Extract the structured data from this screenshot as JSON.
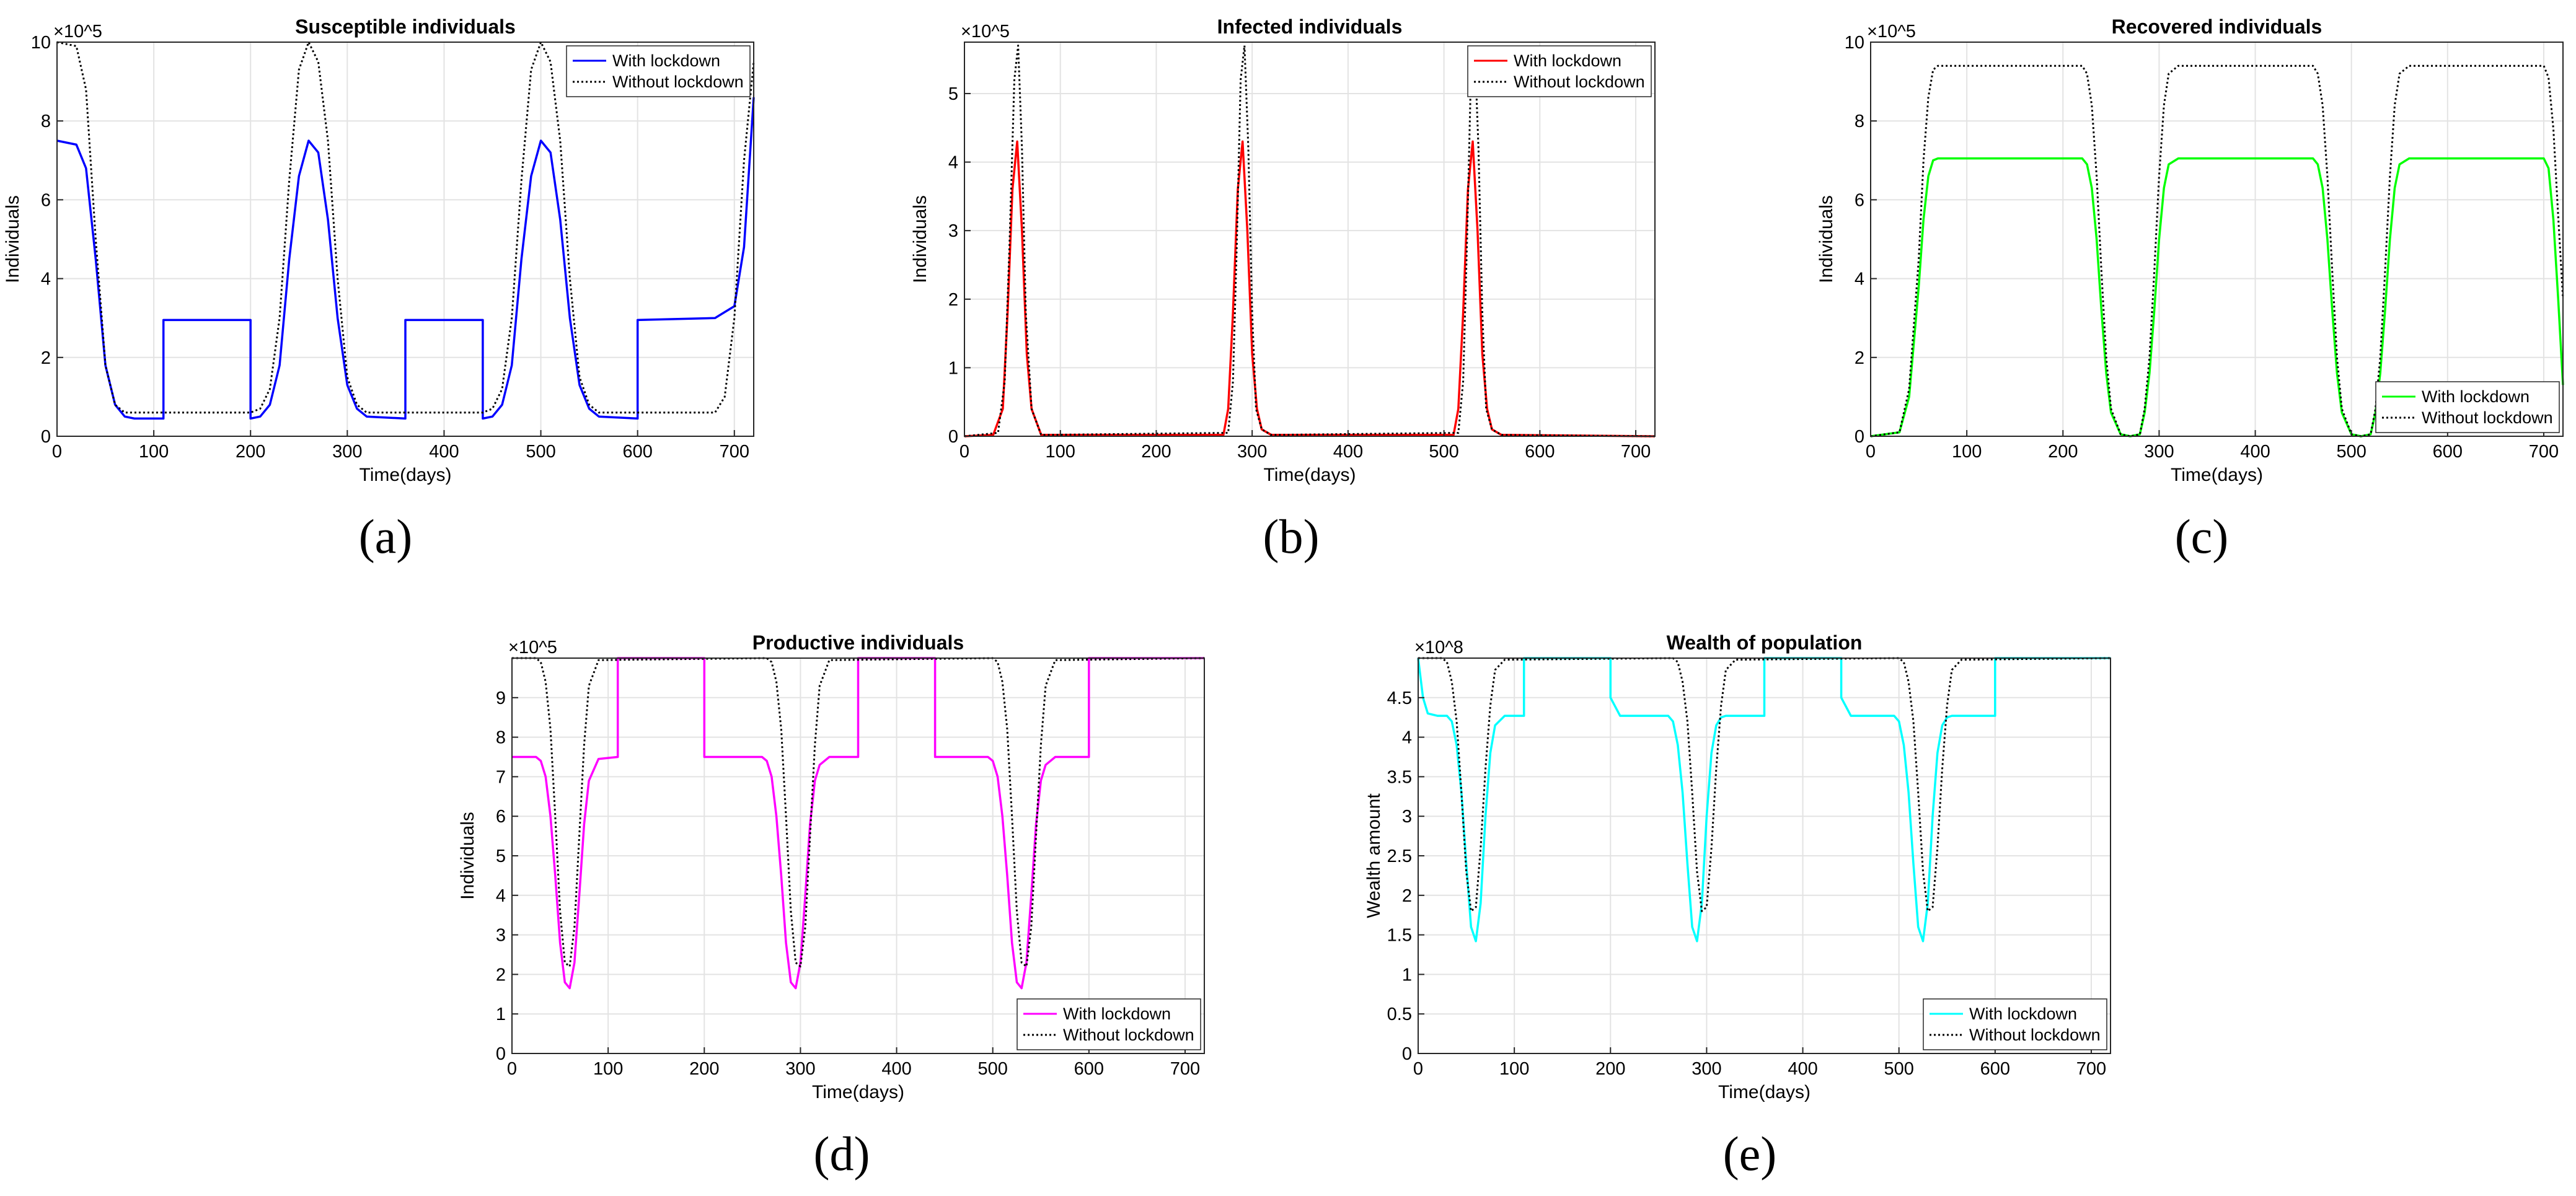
{
  "chart_data": [
    {
      "type": "line",
      "panel": "a",
      "caption": "(a)",
      "title": "Susceptible individuals",
      "xlabel": "Time(days)",
      "ylabel": "Individuals",
      "exponent": "×10^5",
      "xlim": [
        0,
        720
      ],
      "ylim": [
        0,
        10
      ],
      "xticks": [
        0,
        100,
        200,
        300,
        400,
        500,
        600,
        700
      ],
      "yticks": [
        0,
        2,
        4,
        6,
        8,
        10
      ],
      "legend": "top-right",
      "series": [
        {
          "name": "With lockdown",
          "color": "#0000ff",
          "style": "solid",
          "x": [
            0,
            20,
            30,
            40,
            50,
            60,
            70,
            80,
            110,
            110,
            200,
            200,
            210,
            220,
            230,
            240,
            250,
            260,
            270,
            280,
            290,
            300,
            310,
            320,
            360,
            360,
            440,
            440,
            450,
            460,
            470,
            480,
            490,
            500,
            510,
            520,
            530,
            540,
            550,
            560,
            600,
            600,
            680,
            700,
            710,
            720
          ],
          "y": [
            7.5,
            7.4,
            6.8,
            4.5,
            1.8,
            0.8,
            0.5,
            0.45,
            0.45,
            2.95,
            2.95,
            0.45,
            0.5,
            0.8,
            1.8,
            4.5,
            6.6,
            7.5,
            7.2,
            5.5,
            3.0,
            1.3,
            0.7,
            0.5,
            0.45,
            2.95,
            2.95,
            0.45,
            0.5,
            0.8,
            1.8,
            4.5,
            6.6,
            7.5,
            7.2,
            5.5,
            3.0,
            1.3,
            0.7,
            0.5,
            0.45,
            2.95,
            3.0,
            3.3,
            4.8,
            8.6
          ]
        },
        {
          "name": "Without lockdown",
          "color": "#000000",
          "style": "dotted",
          "x": [
            0,
            20,
            30,
            40,
            50,
            60,
            70,
            80,
            100,
            200,
            210,
            220,
            230,
            240,
            250,
            260,
            270,
            280,
            290,
            300,
            310,
            320,
            340,
            440,
            450,
            460,
            470,
            480,
            490,
            500,
            510,
            520,
            530,
            540,
            550,
            560,
            580,
            680,
            690,
            700,
            710,
            720
          ],
          "y": [
            10,
            9.9,
            8.8,
            5.0,
            1.8,
            0.8,
            0.6,
            0.6,
            0.6,
            0.6,
            0.7,
            1.2,
            3.0,
            6.5,
            9.3,
            10,
            9.5,
            7.5,
            4.0,
            1.5,
            0.8,
            0.6,
            0.6,
            0.6,
            0.7,
            1.2,
            3.0,
            6.5,
            9.3,
            10,
            9.5,
            7.5,
            4.0,
            1.5,
            0.8,
            0.6,
            0.6,
            0.6,
            1.0,
            3.0,
            7.0,
            9.5
          ]
        }
      ]
    },
    {
      "type": "line",
      "panel": "b",
      "caption": "(b)",
      "title": "Infected individuals",
      "xlabel": "Time(days)",
      "ylabel": "Individuals",
      "exponent": "×10^5",
      "xlim": [
        0,
        720
      ],
      "ylim": [
        0,
        5.75
      ],
      "xticks": [
        0,
        100,
        200,
        300,
        400,
        500,
        600,
        700
      ],
      "yticks": [
        0,
        1,
        2,
        3,
        4,
        5
      ],
      "legend": "top-right",
      "series": [
        {
          "name": "With lockdown",
          "color": "#ff0000",
          "style": "solid",
          "x": [
            0,
            30,
            40,
            45,
            50,
            55,
            60,
            65,
            70,
            80,
            270,
            275,
            280,
            285,
            290,
            295,
            300,
            305,
            310,
            320,
            510,
            515,
            520,
            525,
            530,
            535,
            540,
            545,
            550,
            560,
            720
          ],
          "y": [
            0,
            0.02,
            0.4,
            1.8,
            3.6,
            4.3,
            3.0,
            1.2,
            0.4,
            0.02,
            0.02,
            0.4,
            1.8,
            3.6,
            4.3,
            3.0,
            1.2,
            0.4,
            0.1,
            0.02,
            0.02,
            0.4,
            1.8,
            3.6,
            4.3,
            3.0,
            1.2,
            0.4,
            0.1,
            0.02,
            0
          ]
        },
        {
          "name": "Without lockdown",
          "color": "#000000",
          "style": "dotted",
          "x": [
            0,
            35,
            42,
            47,
            52,
            56,
            60,
            64,
            70,
            80,
            275,
            280,
            284,
            288,
            292,
            296,
            300,
            304,
            310,
            320,
            515,
            520,
            524,
            528,
            532,
            536,
            540,
            544,
            550,
            560,
            720
          ],
          "y": [
            0,
            0.05,
            0.8,
            2.8,
            5.2,
            5.7,
            4.2,
            1.8,
            0.4,
            0.02,
            0.05,
            0.8,
            2.8,
            5.2,
            5.7,
            4.2,
            1.8,
            0.4,
            0.1,
            0.02,
            0.05,
            0.8,
            2.8,
            5.2,
            5.7,
            4.2,
            1.8,
            0.4,
            0.1,
            0.02,
            0
          ]
        }
      ]
    },
    {
      "type": "line",
      "panel": "c",
      "caption": "(c)",
      "title": "Recovered individuals",
      "xlabel": "Time(days)",
      "ylabel": "Individuals",
      "exponent": "×10^5",
      "xlim": [
        0,
        720
      ],
      "ylim": [
        0,
        10
      ],
      "xticks": [
        0,
        100,
        200,
        300,
        400,
        500,
        600,
        700
      ],
      "yticks": [
        0,
        2,
        4,
        6,
        8,
        10
      ],
      "legend": "bottom-right",
      "series": [
        {
          "name": "With lockdown",
          "color": "#00ff00",
          "style": "solid",
          "x": [
            0,
            30,
            40,
            50,
            55,
            60,
            65,
            70,
            80,
            220,
            225,
            230,
            235,
            240,
            245,
            250,
            260,
            270,
            280,
            285,
            290,
            295,
            300,
            305,
            310,
            320,
            460,
            465,
            470,
            475,
            480,
            485,
            490,
            500,
            510,
            520,
            525,
            530,
            535,
            540,
            545,
            550,
            560,
            700,
            705,
            710,
            715,
            720
          ],
          "y": [
            0,
            0.1,
            1.0,
            3.8,
            5.5,
            6.6,
            7.0,
            7.05,
            7.05,
            7.05,
            6.9,
            6.3,
            5.0,
            3.2,
            1.6,
            0.6,
            0.05,
            0,
            0.05,
            0.6,
            1.6,
            3.2,
            5.0,
            6.3,
            6.9,
            7.05,
            7.05,
            6.9,
            6.3,
            5.0,
            3.2,
            1.6,
            0.6,
            0.05,
            0,
            0.05,
            0.6,
            1.6,
            3.2,
            5.0,
            6.3,
            6.9,
            7.05,
            7.05,
            6.8,
            5.5,
            3.5,
            1.3
          ]
        },
        {
          "name": "Without lockdown",
          "color": "#000000",
          "style": "dotted",
          "x": [
            0,
            30,
            40,
            50,
            55,
            60,
            65,
            70,
            80,
            220,
            225,
            230,
            235,
            240,
            245,
            250,
            260,
            270,
            280,
            285,
            290,
            295,
            300,
            305,
            310,
            320,
            460,
            465,
            470,
            475,
            480,
            485,
            490,
            500,
            510,
            520,
            525,
            530,
            535,
            540,
            545,
            550,
            560,
            700,
            705,
            710,
            715,
            720
          ],
          "y": [
            0,
            0.1,
            1.2,
            4.5,
            7.0,
            8.6,
            9.3,
            9.4,
            9.4,
            9.4,
            9.2,
            8.4,
            6.6,
            4.2,
            2.0,
            0.7,
            0.05,
            0,
            0.05,
            0.7,
            2.0,
            4.2,
            6.6,
            8.4,
            9.2,
            9.4,
            9.4,
            9.2,
            8.4,
            6.6,
            4.2,
            2.0,
            0.7,
            0.05,
            0,
            0.05,
            0.7,
            2.0,
            4.2,
            6.6,
            8.4,
            9.2,
            9.4,
            9.4,
            9.1,
            7.8,
            5.6,
            3.5
          ]
        }
      ]
    },
    {
      "type": "line",
      "panel": "d",
      "caption": "(d)",
      "title": "Productive individuals",
      "xlabel": "Time(days)",
      "ylabel": "Individuals",
      "exponent": "×10^5",
      "xlim": [
        0,
        720
      ],
      "ylim": [
        0,
        10
      ],
      "xticks": [
        0,
        100,
        200,
        300,
        400,
        500,
        600,
        700
      ],
      "yticks": [
        0,
        1,
        2,
        3,
        4,
        5,
        6,
        7,
        8,
        9
      ],
      "legend": "bottom-right",
      "series": [
        {
          "name": "With lockdown",
          "color": "#ff00ff",
          "style": "solid",
          "x": [
            0,
            25,
            30,
            35,
            40,
            45,
            50,
            55,
            60,
            65,
            70,
            75,
            80,
            90,
            110,
            110,
            200,
            200,
            260,
            265,
            270,
            275,
            280,
            285,
            290,
            295,
            300,
            305,
            310,
            315,
            320,
            330,
            360,
            360,
            440,
            440,
            495,
            500,
            505,
            510,
            515,
            520,
            525,
            530,
            535,
            540,
            545,
            550,
            555,
            565,
            600,
            600,
            720
          ],
          "y": [
            7.5,
            7.5,
            7.4,
            7.0,
            6.0,
            4.5,
            2.8,
            1.8,
            1.65,
            2.3,
            4.0,
            5.8,
            6.9,
            7.45,
            7.5,
            10,
            10,
            7.5,
            7.5,
            7.4,
            7.0,
            6.0,
            4.5,
            2.8,
            1.8,
            1.65,
            2.3,
            4.0,
            5.8,
            6.9,
            7.3,
            7.5,
            7.5,
            10,
            10,
            7.5,
            7.5,
            7.4,
            7.0,
            6.0,
            4.5,
            2.8,
            1.8,
            1.65,
            2.3,
            4.0,
            5.8,
            6.9,
            7.3,
            7.5,
            7.5,
            10,
            10
          ]
        },
        {
          "name": "Without lockdown",
          "color": "#000000",
          "style": "dotted",
          "x": [
            0,
            25,
            30,
            35,
            40,
            45,
            50,
            55,
            60,
            65,
            70,
            75,
            80,
            90,
            265,
            270,
            275,
            280,
            285,
            290,
            295,
            300,
            305,
            310,
            315,
            320,
            330,
            500,
            505,
            510,
            515,
            520,
            525,
            530,
            535,
            540,
            545,
            550,
            555,
            565,
            720
          ],
          "y": [
            10,
            10,
            9.9,
            9.4,
            8.2,
            6.0,
            3.6,
            2.3,
            2.2,
            3.2,
            5.5,
            7.8,
            9.3,
            9.95,
            10,
            9.9,
            9.4,
            8.2,
            6.0,
            3.6,
            2.3,
            2.2,
            3.2,
            5.5,
            7.8,
            9.3,
            9.95,
            10,
            9.9,
            9.4,
            8.2,
            6.0,
            3.6,
            2.3,
            2.2,
            3.2,
            5.5,
            7.8,
            9.3,
            9.95,
            10
          ]
        }
      ]
    },
    {
      "type": "line",
      "panel": "e",
      "caption": "(e)",
      "title": "Wealth of population",
      "xlabel": "Time(days)",
      "ylabel": "Wealth amount",
      "exponent": "×10^8",
      "xlim": [
        0,
        720
      ],
      "ylim": [
        0,
        5
      ],
      "xticks": [
        0,
        100,
        200,
        300,
        400,
        500,
        600,
        700
      ],
      "yticks": [
        0,
        0.5,
        1,
        1.5,
        2,
        2.5,
        3,
        3.5,
        4,
        4.5
      ],
      "legend": "bottom-right",
      "series": [
        {
          "name": "With lockdown",
          "color": "#00ffff",
          "style": "solid",
          "x": [
            0,
            5,
            10,
            20,
            30,
            35,
            40,
            45,
            50,
            55,
            60,
            65,
            70,
            75,
            80,
            90,
            110,
            110,
            200,
            200,
            210,
            260,
            265,
            270,
            275,
            280,
            285,
            290,
            295,
            300,
            305,
            310,
            315,
            320,
            330,
            360,
            360,
            440,
            440,
            450,
            495,
            500,
            505,
            510,
            515,
            520,
            525,
            530,
            535,
            540,
            545,
            550,
            555,
            565,
            600,
            600,
            720
          ],
          "y": [
            5,
            4.5,
            4.3,
            4.27,
            4.27,
            4.2,
            3.9,
            3.3,
            2.4,
            1.6,
            1.42,
            1.9,
            3.0,
            3.8,
            4.15,
            4.27,
            4.27,
            5,
            5,
            4.5,
            4.27,
            4.27,
            4.2,
            3.9,
            3.3,
            2.4,
            1.6,
            1.42,
            1.9,
            3.0,
            3.8,
            4.15,
            4.25,
            4.27,
            4.27,
            4.27,
            5,
            5,
            4.5,
            4.27,
            4.27,
            4.2,
            3.9,
            3.3,
            2.4,
            1.6,
            1.42,
            1.9,
            3.0,
            3.8,
            4.15,
            4.25,
            4.27,
            4.27,
            4.27,
            5,
            5
          ]
        },
        {
          "name": "Without lockdown",
          "color": "#000000",
          "style": "dotted",
          "x": [
            0,
            25,
            30,
            35,
            40,
            45,
            50,
            55,
            60,
            65,
            70,
            75,
            80,
            90,
            265,
            270,
            275,
            280,
            285,
            290,
            295,
            300,
            305,
            310,
            315,
            320,
            330,
            500,
            505,
            510,
            515,
            520,
            525,
            530,
            535,
            540,
            545,
            550,
            555,
            565,
            720
          ],
          "y": [
            5,
            5,
            4.95,
            4.7,
            4.2,
            3.3,
            2.3,
            1.8,
            1.85,
            2.6,
            3.6,
            4.4,
            4.85,
            4.98,
            5,
            4.95,
            4.7,
            4.2,
            3.3,
            2.3,
            1.8,
            1.85,
            2.6,
            3.6,
            4.4,
            4.85,
            4.98,
            5,
            4.95,
            4.7,
            4.2,
            3.3,
            2.3,
            1.8,
            1.85,
            2.6,
            3.6,
            4.4,
            4.85,
            4.98,
            5
          ]
        }
      ]
    }
  ]
}
